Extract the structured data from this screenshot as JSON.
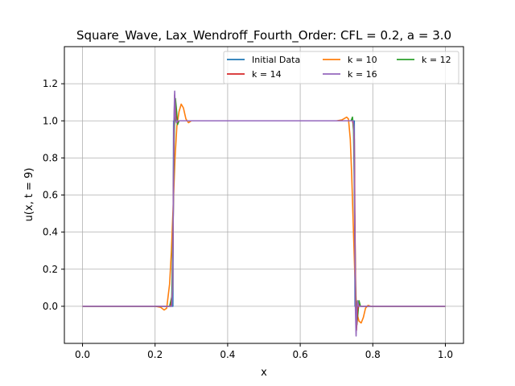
{
  "chart_data": {
    "type": "line",
    "title": "Square_Wave, Lax_Wendroff_Fourth_Order: CFL = 0.2, a = 3.0",
    "xlabel": "x",
    "ylabel": "u(x, t = 9)",
    "xlim": [
      -0.05,
      1.05
    ],
    "ylim": [
      -0.2,
      1.4
    ],
    "xticks": [
      0.0,
      0.2,
      0.4,
      0.6,
      0.8,
      1.0
    ],
    "xtick_labels": [
      "0.0",
      "0.2",
      "0.4",
      "0.6",
      "0.8",
      "1.0"
    ],
    "yticks": [
      0.0,
      0.2,
      0.4,
      0.6,
      0.8,
      1.0,
      1.2
    ],
    "ytick_labels": [
      "0.0",
      "0.2",
      "0.4",
      "0.6",
      "0.8",
      "1.0",
      "1.2"
    ],
    "grid": true,
    "legend": {
      "placement": "top-right",
      "columns": 3
    },
    "series": [
      {
        "name": "Initial Data",
        "color": "#1f77b4",
        "x": [
          0.0,
          0.249,
          0.251,
          0.749,
          0.751,
          1.0
        ],
        "y": [
          0.0,
          0.0,
          1.0,
          1.0,
          0.0,
          0.0
        ]
      },
      {
        "name": "k = 10",
        "color": "#ff7f0e",
        "x": [
          0.0,
          0.2,
          0.215,
          0.225,
          0.232,
          0.24,
          0.245,
          0.25,
          0.255,
          0.26,
          0.266,
          0.272,
          0.278,
          0.285,
          0.292,
          0.3,
          0.31,
          0.7,
          0.715,
          0.728,
          0.733,
          0.738,
          0.742,
          0.746,
          0.75,
          0.754,
          0.758,
          0.762,
          0.768,
          0.774,
          0.78,
          0.787,
          0.795,
          0.805,
          1.0
        ],
        "y": [
          0.0,
          0.0,
          -0.005,
          -0.02,
          -0.01,
          0.12,
          0.3,
          0.55,
          0.8,
          0.97,
          1.05,
          1.09,
          1.07,
          1.01,
          0.99,
          1.0,
          1.0,
          1.0,
          1.005,
          1.02,
          1.01,
          0.9,
          0.7,
          0.45,
          0.2,
          0.03,
          -0.05,
          -0.08,
          -0.09,
          -0.06,
          -0.01,
          0.005,
          0.0,
          0.0,
          0.0
        ]
      },
      {
        "name": "k = 12",
        "color": "#2ca02c",
        "x": [
          0.0,
          0.24,
          0.246,
          0.25,
          0.253,
          0.256,
          0.259,
          0.262,
          0.266,
          0.27,
          0.74,
          0.744,
          0.747,
          0.75,
          0.753,
          0.756,
          0.759,
          0.762,
          0.766,
          0.77,
          1.0
        ],
        "y": [
          0.0,
          0.0,
          0.05,
          0.5,
          0.95,
          1.12,
          1.06,
          0.98,
          1.0,
          1.0,
          1.0,
          1.02,
          0.95,
          0.5,
          0.05,
          -0.1,
          -0.04,
          0.03,
          0.0,
          0.0,
          0.0
        ]
      },
      {
        "name": "k = 14",
        "color": "#d62728",
        "x": [
          0.0,
          0.244,
          0.248,
          0.25,
          0.252,
          0.254,
          0.257,
          0.26,
          0.264,
          0.744,
          0.747,
          0.749,
          0.751,
          0.753,
          0.755,
          0.758,
          0.761,
          0.764,
          1.0
        ],
        "y": [
          0.0,
          0.0,
          0.08,
          0.5,
          0.95,
          1.14,
          1.03,
          0.99,
          1.0,
          1.0,
          0.98,
          0.9,
          0.4,
          -0.02,
          -0.13,
          -0.02,
          0.01,
          0.0,
          0.0
        ]
      },
      {
        "name": "k = 16",
        "color": "#9467bd",
        "x": [
          0.0,
          0.246,
          0.248,
          0.25,
          0.252,
          0.254,
          0.256,
          0.259,
          0.262,
          0.746,
          0.748,
          0.75,
          0.752,
          0.754,
          0.756,
          0.758,
          0.761,
          0.764,
          1.0
        ],
        "y": [
          0.0,
          0.0,
          0.1,
          0.5,
          1.0,
          1.16,
          1.02,
          0.99,
          1.0,
          1.0,
          0.97,
          0.5,
          0.0,
          -0.16,
          -0.02,
          0.03,
          0.0,
          0.0,
          0.0
        ]
      }
    ]
  }
}
